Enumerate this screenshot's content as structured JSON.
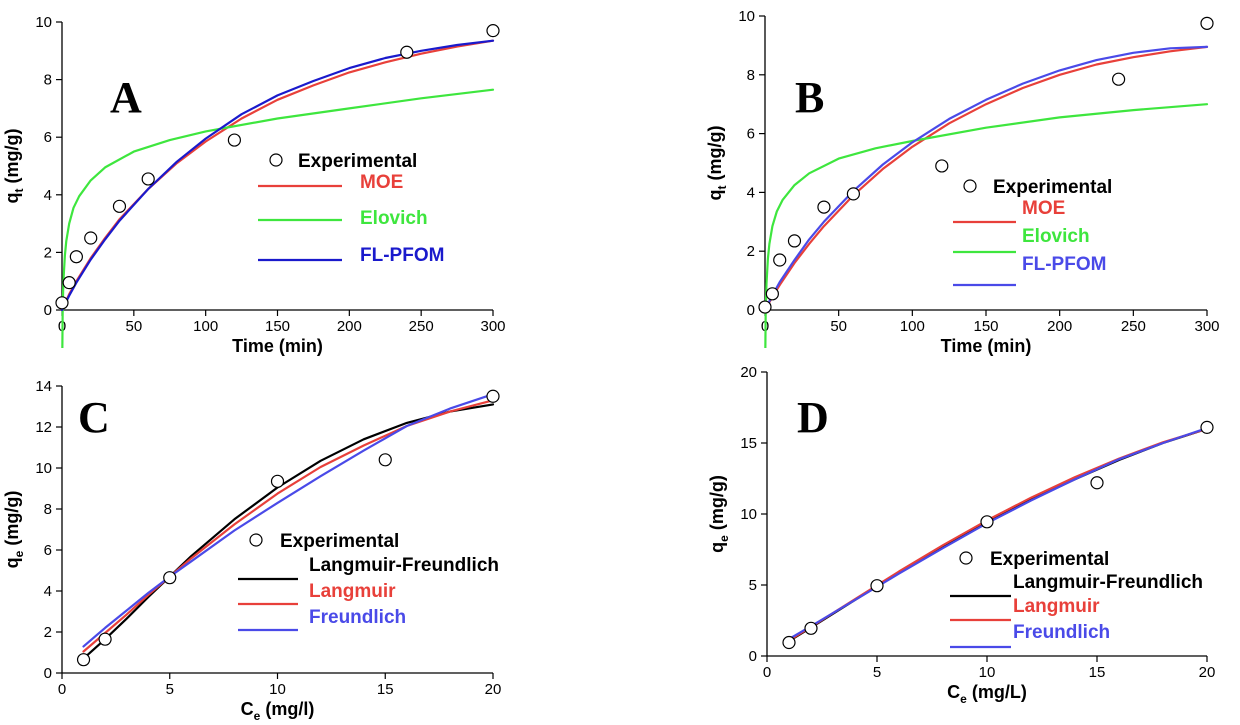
{
  "chart_data": [
    {
      "id": "A",
      "type": "line",
      "panel_label": "A",
      "xlabel": "Time (min)",
      "ylabel_main": "q",
      "ylabel_sub": "t",
      "ylabel_unit": " (mg/g)",
      "xlim": [
        0,
        300
      ],
      "ylim": [
        0,
        10
      ],
      "xticks": [
        0,
        50,
        100,
        150,
        200,
        250,
        300
      ],
      "yticks": [
        0,
        2,
        4,
        6,
        8,
        10
      ],
      "grid": false,
      "legend_placement": "right-middle",
      "points": {
        "name": "Experimental",
        "x": [
          0,
          5,
          10,
          20,
          40,
          60,
          120,
          240,
          300
        ],
        "y": [
          0.25,
          0.95,
          1.85,
          2.5,
          3.6,
          4.55,
          5.9,
          8.95,
          9.7
        ]
      },
      "series": [
        {
          "name": "MOE",
          "color": "#e8403a",
          "x": [
            0,
            5,
            10,
            20,
            30,
            40,
            60,
            80,
            100,
            125,
            150,
            175,
            200,
            225,
            250,
            275,
            300
          ],
          "y": [
            0,
            0.55,
            1.0,
            1.8,
            2.5,
            3.15,
            4.2,
            5.1,
            5.85,
            6.65,
            7.3,
            7.8,
            8.25,
            8.6,
            8.9,
            9.15,
            9.35
          ]
        },
        {
          "name": "Elovich",
          "color": "#3ee63e",
          "x": [
            0.2,
            0.5,
            1,
            2,
            3,
            5,
            8,
            12,
            20,
            30,
            50,
            75,
            100,
            150,
            200,
            250,
            300
          ],
          "y": [
            -1.5,
            0.1,
            1.0,
            1.9,
            2.4,
            3.0,
            3.55,
            3.95,
            4.5,
            4.95,
            5.5,
            5.9,
            6.2,
            6.65,
            7.0,
            7.35,
            7.65
          ]
        },
        {
          "name": "FL-PFOM",
          "color": "#1a1acc",
          "x": [
            0,
            5,
            10,
            20,
            30,
            40,
            60,
            80,
            100,
            125,
            150,
            175,
            200,
            225,
            250,
            275,
            300
          ],
          "y": [
            0,
            0.5,
            0.95,
            1.75,
            2.45,
            3.1,
            4.2,
            5.15,
            5.95,
            6.8,
            7.45,
            7.95,
            8.4,
            8.75,
            9.0,
            9.2,
            9.35
          ]
        }
      ]
    },
    {
      "id": "B",
      "type": "line",
      "panel_label": "B",
      "xlabel": "Time (min)",
      "ylabel_main": "q",
      "ylabel_sub": "t",
      "ylabel_unit": " (mg/g)",
      "xlim": [
        0,
        300
      ],
      "ylim": [
        0,
        10
      ],
      "xticks": [
        0,
        50,
        100,
        150,
        200,
        250,
        300
      ],
      "yticks": [
        0,
        2,
        4,
        6,
        8,
        10
      ],
      "grid": false,
      "legend_placement": "right-middle",
      "points": {
        "name": "Experimental",
        "x": [
          0,
          5,
          10,
          20,
          40,
          60,
          120,
          240,
          300
        ],
        "y": [
          0.1,
          0.55,
          1.7,
          2.35,
          3.5,
          3.95,
          4.9,
          7.85,
          9.75
        ]
      },
      "series": [
        {
          "name": "MOE",
          "color": "#e8403a",
          "x": [
            0,
            5,
            10,
            20,
            30,
            40,
            60,
            80,
            100,
            125,
            150,
            175,
            200,
            225,
            250,
            275,
            300
          ],
          "y": [
            0,
            0.45,
            0.85,
            1.6,
            2.25,
            2.85,
            3.9,
            4.8,
            5.55,
            6.35,
            7.0,
            7.55,
            8.0,
            8.35,
            8.6,
            8.8,
            8.95
          ]
        },
        {
          "name": "Elovich",
          "color": "#3ee63e",
          "x": [
            0.2,
            0.5,
            1,
            2,
            3,
            5,
            8,
            12,
            20,
            30,
            50,
            75,
            100,
            150,
            200,
            250,
            300
          ],
          "y": [
            -1.5,
            0.0,
            0.9,
            1.75,
            2.25,
            2.85,
            3.35,
            3.75,
            4.25,
            4.65,
            5.15,
            5.5,
            5.75,
            6.2,
            6.55,
            6.8,
            7.0
          ]
        },
        {
          "name": "FL-PFOM",
          "color": "#4a4ae8",
          "x": [
            0,
            5,
            10,
            20,
            30,
            40,
            60,
            80,
            100,
            125,
            150,
            175,
            200,
            225,
            250,
            275,
            300
          ],
          "y": [
            0,
            0.5,
            0.95,
            1.7,
            2.4,
            3.0,
            4.05,
            4.95,
            5.7,
            6.5,
            7.15,
            7.7,
            8.15,
            8.5,
            8.75,
            8.9,
            8.95
          ]
        }
      ]
    },
    {
      "id": "C",
      "type": "line",
      "panel_label": "C",
      "xlabel_main": "C",
      "xlabel_sub": "e",
      "xlabel_unit": " (mg/l)",
      "ylabel_main": "q",
      "ylabel_sub": "e",
      "ylabel_unit": " (mg/g)",
      "xlim": [
        0,
        20
      ],
      "ylim": [
        0,
        14
      ],
      "xticks": [
        0,
        5,
        10,
        15,
        20
      ],
      "yticks": [
        0,
        2,
        4,
        6,
        8,
        10,
        12,
        14
      ],
      "grid": false,
      "legend_placement": "center",
      "points": {
        "name": "Experimental",
        "x": [
          1,
          2,
          5,
          10,
          15,
          20
        ],
        "y": [
          0.65,
          1.65,
          4.65,
          9.35,
          10.4,
          13.5
        ]
      },
      "series": [
        {
          "name": "Langmuir-Freundlich",
          "color": "#000000",
          "x": [
            1,
            2,
            3,
            4,
            5,
            6,
            8,
            10,
            12,
            14,
            16,
            18,
            20
          ],
          "y": [
            0.7,
            1.65,
            2.65,
            3.7,
            4.7,
            5.7,
            7.5,
            9.05,
            10.35,
            11.4,
            12.2,
            12.75,
            13.1
          ]
        },
        {
          "name": "Langmuir",
          "color": "#e8403a",
          "x": [
            1,
            2,
            3,
            4,
            5,
            6,
            8,
            10,
            12,
            14,
            16,
            18,
            20
          ],
          "y": [
            1.05,
            1.95,
            2.85,
            3.8,
            4.7,
            5.6,
            7.25,
            8.75,
            10.05,
            11.1,
            12.05,
            12.75,
            13.3
          ]
        },
        {
          "name": "Freundlich",
          "color": "#4a4ae8",
          "x": [
            1,
            2,
            3,
            4,
            5,
            6,
            8,
            10,
            12,
            14,
            16,
            18,
            20
          ],
          "y": [
            1.3,
            2.2,
            3.05,
            3.9,
            4.7,
            5.45,
            6.95,
            8.3,
            9.6,
            10.85,
            12.05,
            12.9,
            13.6
          ]
        }
      ]
    },
    {
      "id": "D",
      "type": "line",
      "panel_label": "D",
      "xlabel_main": "C",
      "xlabel_sub": "e",
      "xlabel_unit": " (mg/L)",
      "ylabel_main": "q",
      "ylabel_sub": "e",
      "ylabel_unit": " (mg/g)",
      "xlim": [
        0,
        20
      ],
      "ylim": [
        0,
        20
      ],
      "xticks": [
        0,
        5,
        10,
        15,
        20
      ],
      "yticks": [
        0,
        5,
        10,
        15,
        20
      ],
      "grid": false,
      "legend_placement": "bottom-right",
      "points": {
        "name": "Experimental",
        "x": [
          1,
          2,
          5,
          10,
          15,
          20
        ],
        "y": [
          0.95,
          1.95,
          4.95,
          9.45,
          12.2,
          16.1
        ]
      },
      "series": [
        {
          "name": "Langmuir-Freundlich",
          "color": "#000000",
          "x": [
            1,
            2,
            4,
            6,
            8,
            10,
            12,
            14,
            16,
            18,
            20
          ],
          "y": [
            1.05,
            2.0,
            3.95,
            5.85,
            7.7,
            9.4,
            11.0,
            12.45,
            13.8,
            15.0,
            16.0
          ]
        },
        {
          "name": "Langmuir",
          "color": "#e8403a",
          "x": [
            1,
            2,
            4,
            6,
            8,
            10,
            12,
            14,
            16,
            18,
            20
          ],
          "y": [
            1.1,
            2.05,
            4.0,
            5.95,
            7.8,
            9.55,
            11.15,
            12.6,
            13.9,
            15.05,
            16.0
          ]
        },
        {
          "name": "Freundlich",
          "color": "#4a4ae8",
          "x": [
            1,
            2,
            4,
            6,
            8,
            10,
            12,
            14,
            16,
            18,
            20
          ],
          "y": [
            1.2,
            2.1,
            3.95,
            5.8,
            7.6,
            9.35,
            10.95,
            12.45,
            13.85,
            15.0,
            16.05
          ]
        }
      ]
    }
  ]
}
